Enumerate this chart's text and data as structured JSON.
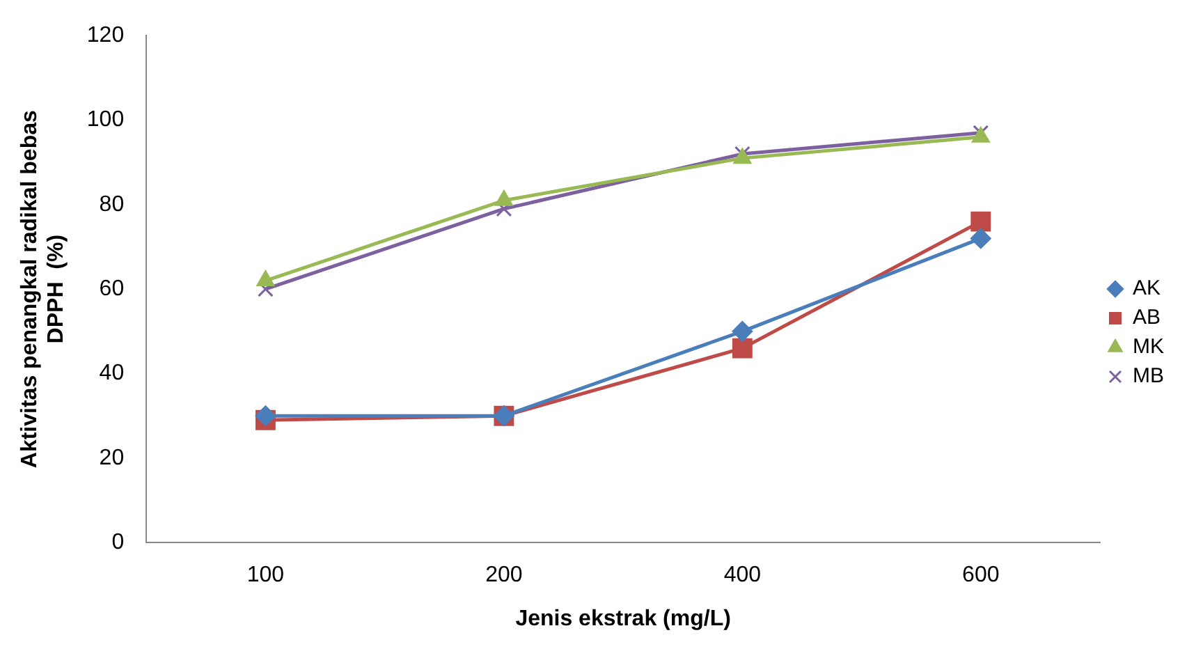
{
  "chart_data": {
    "type": "line",
    "xlabel": "Jenis ekstrak (mg/L)",
    "ylabel": "Aktivitas penangkal radikal bebas\nDPPH  (%)",
    "categories": [
      "100",
      "200",
      "400",
      "600"
    ],
    "series": [
      {
        "name": "AK",
        "color": "#4a7ebb",
        "marker": "diamond",
        "values": [
          30,
          30,
          50,
          72
        ]
      },
      {
        "name": "AB",
        "color": "#be4b48",
        "marker": "square",
        "values": [
          29,
          30,
          46,
          76
        ]
      },
      {
        "name": "MK",
        "color": "#98b954",
        "marker": "triangle",
        "values": [
          62,
          81,
          91,
          96
        ]
      },
      {
        "name": "MB",
        "color": "#7d60a0",
        "marker": "cross",
        "values": [
          60,
          79,
          92,
          97
        ]
      }
    ],
    "ylim": [
      0,
      120
    ],
    "yticks": [
      0,
      20,
      40,
      60,
      80,
      100,
      120
    ],
    "grid": false,
    "legend": "right",
    "line_style": "solid"
  }
}
